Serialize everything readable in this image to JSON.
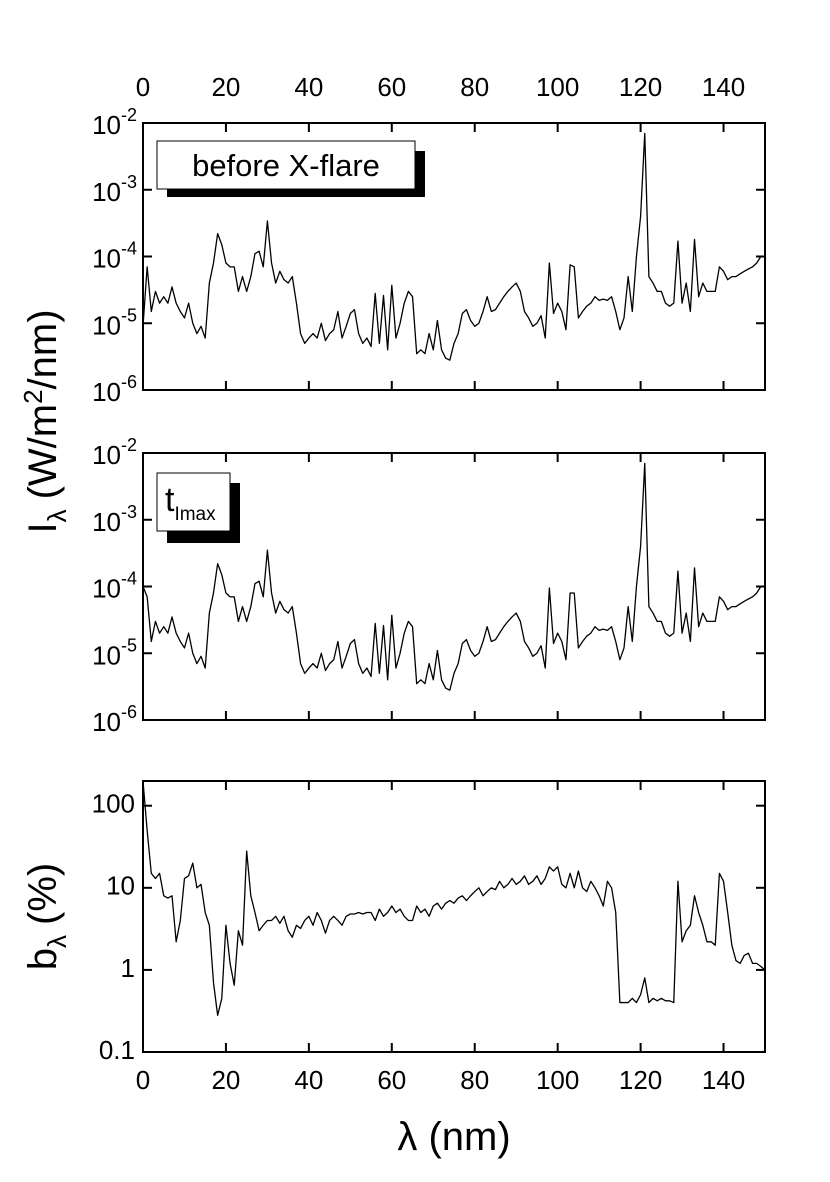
{
  "chart_data": [
    {
      "type": "line",
      "log_y": true,
      "color": "#000000",
      "xtick_labels": "top",
      "ylabel": {
        "text": "I",
        "sub": "λ",
        "unit": "(W/m",
        "sup": "2",
        "unit_end": "/nm)"
      },
      "annotation": {
        "text": "before X-flare"
      },
      "xlim": [
        0,
        150
      ],
      "xticks": [
        0,
        20,
        40,
        60,
        80,
        100,
        120,
        140
      ],
      "ylim": [
        1e-06,
        0.01
      ],
      "yticks": [
        {
          "value": 1e-06,
          "label": "10",
          "exponent": "-6"
        },
        {
          "value": 1e-05,
          "label": "10",
          "exponent": "-5"
        },
        {
          "value": 0.0001,
          "label": "10",
          "exponent": "-4"
        },
        {
          "value": 0.001,
          "label": "10",
          "exponent": "-3"
        },
        {
          "value": 0.01,
          "label": "10",
          "exponent": "-2"
        }
      ],
      "x": [
        0,
        1,
        2,
        3,
        4,
        5,
        6,
        7,
        8,
        9,
        10,
        11,
        12,
        13,
        14,
        15,
        16,
        17,
        18,
        19,
        20,
        21,
        22,
        23,
        24,
        25,
        26,
        27,
        28,
        29,
        30,
        31,
        32,
        33,
        34,
        35,
        36,
        37,
        38,
        39,
        40,
        41,
        42,
        43,
        44,
        45,
        46,
        47,
        48,
        49,
        50,
        51,
        52,
        53,
        54,
        55,
        56,
        57,
        58,
        59,
        60,
        61,
        62,
        63,
        64,
        65,
        66,
        67,
        68,
        69,
        70,
        71,
        72,
        73,
        74,
        75,
        76,
        77,
        78,
        79,
        80,
        81,
        82,
        83,
        84,
        85,
        86,
        87,
        88,
        89,
        90,
        91,
        92,
        93,
        94,
        95,
        96,
        97,
        98,
        99,
        100,
        101,
        102,
        103,
        104,
        105,
        106,
        107,
        108,
        109,
        110,
        111,
        112,
        113,
        114,
        115,
        116,
        117,
        118,
        119,
        120,
        121,
        122,
        123,
        124,
        125,
        126,
        127,
        128,
        129,
        130,
        131,
        132,
        133,
        134,
        135,
        136,
        137,
        138,
        139,
        140,
        141,
        142,
        143,
        144,
        145,
        146,
        147,
        148,
        149,
        150
      ],
      "values": [
        9e-06,
        7e-05,
        1.5e-05,
        3e-05,
        2e-05,
        2.5e-05,
        2e-05,
        3.5e-05,
        2e-05,
        1.5e-05,
        1.2e-05,
        2e-05,
        1e-05,
        7e-06,
        9e-06,
        6e-06,
        4e-05,
        8e-05,
        0.00022,
        0.00015,
        8e-05,
        7e-05,
        7e-05,
        3e-05,
        5e-05,
        3e-05,
        5e-05,
        0.00011,
        0.00012,
        7e-05,
        0.00034,
        8e-05,
        4e-05,
        6e-05,
        4.5e-05,
        4e-05,
        5e-05,
        2e-05,
        7e-06,
        5e-06,
        6e-06,
        7e-06,
        6e-06,
        1e-05,
        5.5e-06,
        7e-06,
        8e-06,
        1.5e-05,
        6e-06,
        9e-06,
        1.4e-05,
        1.6e-05,
        7e-06,
        5e-06,
        6e-06,
        4.5e-06,
        2.8e-05,
        5e-06,
        2.6e-05,
        4e-06,
        3.7e-05,
        6e-06,
        1e-05,
        2e-05,
        3e-05,
        2.5e-05,
        3.5e-06,
        4e-06,
        3.5e-06,
        7e-06,
        4e-06,
        1.1e-05,
        4e-06,
        3e-06,
        2.8e-06,
        5e-06,
        7e-06,
        1.4e-05,
        1.6e-05,
        1.1e-05,
        9e-06,
        1e-05,
        1.5e-05,
        2.5e-05,
        1.5e-05,
        1.6e-05,
        2e-05,
        2.5e-05,
        3e-05,
        3.5e-05,
        4e-05,
        3e-05,
        1.5e-05,
        1.2e-05,
        9e-06,
        1e-05,
        1.3e-05,
        6e-06,
        8e-05,
        1.4e-05,
        2e-05,
        1.5e-05,
        8e-06,
        7.5e-05,
        7e-05,
        1.2e-05,
        1.5e-05,
        1.8e-05,
        2e-05,
        2.5e-05,
        2.2e-05,
        2.3e-05,
        2.2e-05,
        2.5e-05,
        1.5e-05,
        8e-06,
        1.2e-05,
        5e-05,
        1.5e-05,
        0.0001,
        0.0004,
        0.007,
        5e-05,
        4e-05,
        3e-05,
        3e-05,
        2e-05,
        1.8e-05,
        2e-05,
        0.00017,
        2e-05,
        4e-05,
        1.5e-05,
        0.00018,
        2.5e-05,
        4e-05,
        3e-05,
        3e-05,
        3e-05,
        7e-05,
        6e-05,
        4.5e-05,
        5e-05,
        5e-05,
        5.5e-05,
        6e-05,
        6.5e-05,
        7e-05,
        8e-05,
        0.0001,
        0.0001
      ]
    },
    {
      "type": "line",
      "log_y": true,
      "color": "#000000",
      "xtick_labels": "none",
      "annotation": {
        "text": "t",
        "sub": "Imax"
      },
      "xlim": [
        0,
        150
      ],
      "xticks": [
        0,
        20,
        40,
        60,
        80,
        100,
        120,
        140
      ],
      "ylim": [
        1e-06,
        0.01
      ],
      "yticks": [
        {
          "value": 1e-06,
          "label": "10",
          "exponent": "-6"
        },
        {
          "value": 1e-05,
          "label": "10",
          "exponent": "-5"
        },
        {
          "value": 0.0001,
          "label": "10",
          "exponent": "-4"
        },
        {
          "value": 0.001,
          "label": "10",
          "exponent": "-3"
        },
        {
          "value": 0.01,
          "label": "10",
          "exponent": "-2"
        }
      ],
      "x": [
        0,
        1,
        2,
        3,
        4,
        5,
        6,
        7,
        8,
        9,
        10,
        11,
        12,
        13,
        14,
        15,
        16,
        17,
        18,
        19,
        20,
        21,
        22,
        23,
        24,
        25,
        26,
        27,
        28,
        29,
        30,
        31,
        32,
        33,
        34,
        35,
        36,
        37,
        38,
        39,
        40,
        41,
        42,
        43,
        44,
        45,
        46,
        47,
        48,
        49,
        50,
        51,
        52,
        53,
        54,
        55,
        56,
        57,
        58,
        59,
        60,
        61,
        62,
        63,
        64,
        65,
        66,
        67,
        68,
        69,
        70,
        71,
        72,
        73,
        74,
        75,
        76,
        77,
        78,
        79,
        80,
        81,
        82,
        83,
        84,
        85,
        86,
        87,
        88,
        89,
        90,
        91,
        92,
        93,
        94,
        95,
        96,
        97,
        98,
        99,
        100,
        101,
        102,
        103,
        104,
        105,
        106,
        107,
        108,
        109,
        110,
        111,
        112,
        113,
        114,
        115,
        116,
        117,
        118,
        119,
        120,
        121,
        122,
        123,
        124,
        125,
        126,
        127,
        128,
        129,
        130,
        131,
        132,
        133,
        134,
        135,
        136,
        137,
        138,
        139,
        140,
        141,
        142,
        143,
        144,
        145,
        146,
        147,
        148,
        149,
        150
      ],
      "values": [
        0.0001,
        7e-05,
        1.5e-05,
        3e-05,
        2e-05,
        2.5e-05,
        2e-05,
        3.5e-05,
        2e-05,
        1.5e-05,
        1.2e-05,
        2e-05,
        1e-05,
        7e-06,
        9e-06,
        6e-06,
        4e-05,
        8e-05,
        0.00022,
        0.00015,
        8e-05,
        7e-05,
        7e-05,
        3e-05,
        5e-05,
        3e-05,
        5e-05,
        0.00011,
        0.00012,
        7e-05,
        0.00035,
        8e-05,
        4e-05,
        6e-05,
        4.5e-05,
        4e-05,
        5e-05,
        2e-05,
        7e-06,
        5e-06,
        6e-06,
        7e-06,
        6e-06,
        1e-05,
        5.5e-06,
        7e-06,
        8e-06,
        1.5e-05,
        6e-06,
        9e-06,
        1.4e-05,
        1.6e-05,
        7e-06,
        5e-06,
        6e-06,
        4.5e-06,
        2.8e-05,
        5e-06,
        2.6e-05,
        4e-06,
        3.7e-05,
        6e-06,
        1e-05,
        2e-05,
        3e-05,
        2.5e-05,
        3.5e-06,
        4e-06,
        3.5e-06,
        7e-06,
        4e-06,
        1.1e-05,
        4e-06,
        3e-06,
        2.8e-06,
        5e-06,
        7e-06,
        1.4e-05,
        1.6e-05,
        1.1e-05,
        9e-06,
        1e-05,
        1.5e-05,
        2.5e-05,
        1.5e-05,
        1.6e-05,
        2e-05,
        2.5e-05,
        3e-05,
        3.5e-05,
        4e-05,
        3e-05,
        1.5e-05,
        1.2e-05,
        9e-06,
        1e-05,
        1.3e-05,
        6e-06,
        9.5e-05,
        1.4e-05,
        2e-05,
        1.5e-05,
        8e-06,
        8e-05,
        8e-05,
        1.2e-05,
        1.5e-05,
        1.8e-05,
        2e-05,
        2.5e-05,
        2.2e-05,
        2.3e-05,
        2.2e-05,
        2.5e-05,
        1.5e-05,
        8e-06,
        1.2e-05,
        5e-05,
        1.5e-05,
        0.0001,
        0.0004,
        0.007,
        5e-05,
        4e-05,
        3e-05,
        3e-05,
        2e-05,
        1.8e-05,
        2e-05,
        0.00017,
        2e-05,
        4e-05,
        1.5e-05,
        0.00019,
        2.5e-05,
        4e-05,
        3e-05,
        3e-05,
        3e-05,
        7e-05,
        6e-05,
        4.5e-05,
        5e-05,
        5e-05,
        5.5e-05,
        6e-05,
        6.5e-05,
        7e-05,
        8e-05,
        0.0001,
        0.0001
      ]
    },
    {
      "type": "line",
      "log_y": true,
      "color": "#000000",
      "xtick_labels": "bottom",
      "xlabel": "λ (nm)",
      "ylabel": {
        "text": "b",
        "sub": "λ",
        "unit": "(%)"
      },
      "xlim": [
        0,
        150
      ],
      "xticks": [
        0,
        20,
        40,
        60,
        80,
        100,
        120,
        140
      ],
      "ylim": [
        0.1,
        200
      ],
      "yticks": [
        0.1,
        1,
        10,
        100
      ],
      "x": [
        0,
        1,
        2,
        3,
        4,
        5,
        6,
        7,
        8,
        9,
        10,
        11,
        12,
        13,
        14,
        15,
        16,
        17,
        18,
        19,
        20,
        21,
        22,
        23,
        24,
        25,
        26,
        27,
        28,
        29,
        30,
        31,
        32,
        33,
        34,
        35,
        36,
        37,
        38,
        39,
        40,
        41,
        42,
        43,
        44,
        45,
        46,
        47,
        48,
        49,
        50,
        51,
        52,
        53,
        54,
        55,
        56,
        57,
        58,
        59,
        60,
        61,
        62,
        63,
        64,
        65,
        66,
        67,
        68,
        69,
        70,
        71,
        72,
        73,
        74,
        75,
        76,
        77,
        78,
        79,
        80,
        81,
        82,
        83,
        84,
        85,
        86,
        87,
        88,
        89,
        90,
        91,
        92,
        93,
        94,
        95,
        96,
        97,
        98,
        99,
        100,
        101,
        102,
        103,
        104,
        105,
        106,
        107,
        108,
        109,
        110,
        111,
        112,
        113,
        114,
        115,
        116,
        117,
        118,
        119,
        120,
        121,
        122,
        123,
        124,
        125,
        126,
        127,
        128,
        129,
        130,
        131,
        132,
        133,
        134,
        135,
        136,
        137,
        138,
        139,
        140,
        141,
        142,
        143,
        144,
        145,
        146,
        147,
        148,
        149,
        150
      ],
      "values": [
        200,
        50,
        15,
        13,
        15,
        8,
        7.5,
        8,
        2.2,
        4,
        13,
        14,
        20,
        10,
        11,
        5,
        3.5,
        0.7,
        0.28,
        0.45,
        3.5,
        1.2,
        0.65,
        3,
        2,
        28,
        8,
        5,
        3,
        3.5,
        4,
        4,
        4.5,
        3.7,
        4.5,
        3,
        2.5,
        3.5,
        3.2,
        4,
        4.5,
        3.5,
        5,
        4,
        2.8,
        4,
        4.5,
        4,
        3.5,
        4.5,
        4.8,
        4.8,
        5,
        4.8,
        5,
        5,
        4,
        5.5,
        4.5,
        5,
        6,
        5,
        5.5,
        4.5,
        4,
        4,
        6,
        5,
        5.5,
        4.5,
        6,
        6.5,
        5.5,
        6.5,
        7,
        6.5,
        7.5,
        8,
        7,
        8,
        9,
        10,
        8,
        9,
        10,
        9.5,
        12,
        10,
        11,
        13,
        11,
        12,
        14,
        11,
        12,
        14,
        11,
        13,
        18,
        16,
        18,
        11,
        10,
        15,
        10,
        16,
        10,
        9,
        12,
        10,
        8,
        6,
        12,
        10,
        5,
        0.4,
        0.4,
        0.4,
        0.45,
        0.4,
        0.5,
        0.8,
        0.4,
        0.45,
        0.42,
        0.45,
        0.42,
        0.42,
        0.4,
        12,
        2.2,
        3,
        3.5,
        8,
        5,
        3.5,
        2.2,
        2.2,
        2,
        15,
        12,
        5,
        2,
        1.3,
        1.2,
        1.5,
        1.6,
        1.2,
        1.2,
        1.1,
        1.0
      ]
    }
  ]
}
